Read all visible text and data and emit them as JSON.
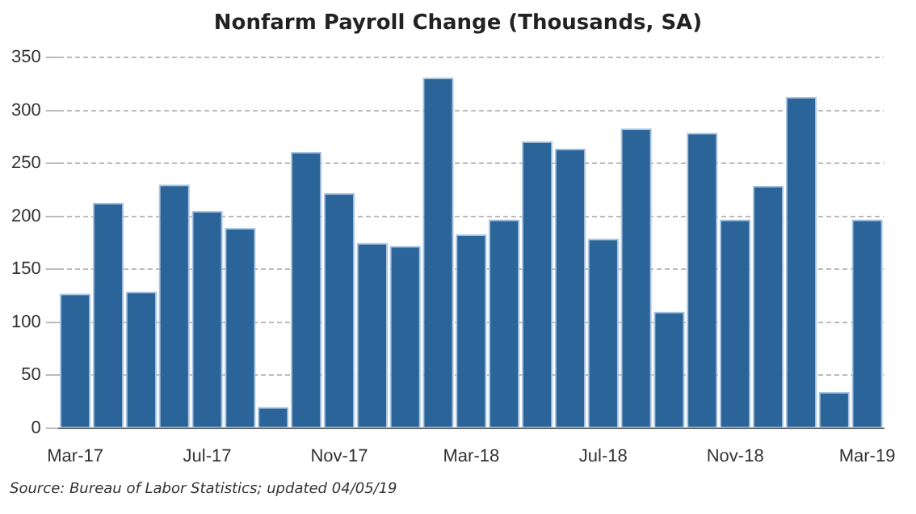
{
  "chart_data": {
    "type": "bar",
    "title": "Nonfarm Payroll Change (Thousands, SA)",
    "categories": [
      "Mar-17",
      null,
      null,
      null,
      "Jul-17",
      null,
      null,
      null,
      "Nov-17",
      null,
      null,
      null,
      "Mar-18",
      null,
      null,
      null,
      "Jul-18",
      null,
      null,
      null,
      "Nov-18",
      null,
      null,
      null,
      "Mar-19"
    ],
    "values": [
      127,
      213,
      129,
      230,
      205,
      189,
      20,
      261,
      222,
      175,
      172,
      331,
      183,
      197,
      271,
      264,
      179,
      283,
      110,
      279,
      197,
      229,
      313,
      34,
      197
    ],
    "color": "#2a6499",
    "ylim": [
      0,
      350
    ],
    "yticks": [
      0,
      50,
      100,
      150,
      200,
      250,
      300,
      350
    ],
    "grid": "y",
    "legend": false,
    "annotations": [
      "Source: Bureau of Labor Statistics; updated 04/05/19"
    ]
  }
}
